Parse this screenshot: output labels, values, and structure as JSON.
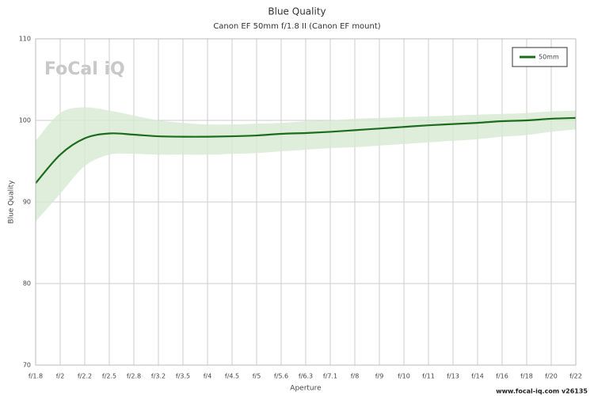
{
  "chart_data": {
    "type": "line",
    "title": "Blue Quality",
    "subtitle": "Canon EF 50mm f/1.8 II (Canon EF mount)",
    "x_label": "Aperture",
    "y_label": "Blue Quality",
    "logo": "FoCal iQ",
    "footer": "www.focal-iq.com  v26135",
    "categories": [
      "f/1.8",
      "f/2",
      "f/2.2",
      "f/2.5",
      "f/2.8",
      "f/3.2",
      "f/3.5",
      "f/4",
      "f/4.5",
      "f/5",
      "f/5.6",
      "f/6.3",
      "f/7.1",
      "f/8",
      "f/9",
      "f/10",
      "f/11",
      "f/13",
      "f/14",
      "f/16",
      "f/18",
      "f/20",
      "f/22"
    ],
    "series": [
      {
        "name": "50mm",
        "color": "#1d6b1d",
        "band_color": "#d6ead2",
        "values": [
          92.3,
          95.8,
          97.8,
          98.4,
          98.25,
          98.05,
          98.0,
          98.0,
          98.05,
          98.15,
          98.35,
          98.45,
          98.6,
          98.8,
          99.0,
          99.2,
          99.4,
          99.55,
          99.7,
          99.9,
          100.0,
          100.2,
          100.3
        ],
        "upper": [
          97.5,
          100.9,
          101.6,
          101.2,
          100.6,
          100.0,
          99.7,
          99.5,
          99.5,
          99.6,
          99.7,
          99.9,
          100.0,
          100.2,
          100.3,
          100.4,
          100.5,
          100.6,
          100.7,
          100.8,
          100.9,
          101.1,
          101.2
        ],
        "lower": [
          87.6,
          91.0,
          94.4,
          95.8,
          95.9,
          95.8,
          95.8,
          95.8,
          95.9,
          96.0,
          96.2,
          96.4,
          96.6,
          96.7,
          96.9,
          97.1,
          97.3,
          97.5,
          97.7,
          98.0,
          98.2,
          98.6,
          98.9
        ]
      }
    ],
    "ylim": [
      70,
      110
    ],
    "yticks": [
      70,
      80,
      90,
      100,
      110
    ],
    "grid": true,
    "legend": "top-right"
  }
}
